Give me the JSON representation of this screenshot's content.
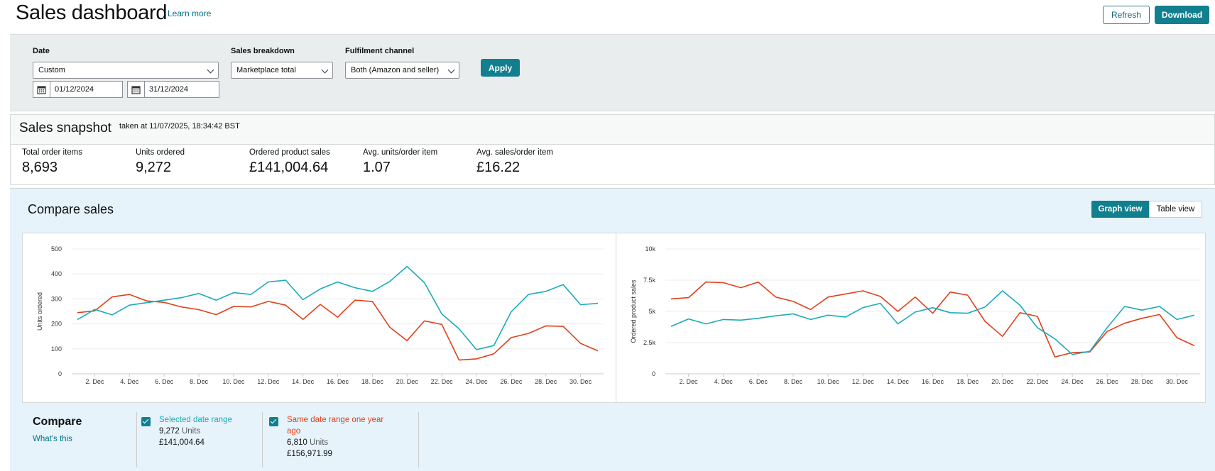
{
  "header": {
    "title": "Sales dashboard",
    "learn_more": "Learn more",
    "refresh_label": "Refresh",
    "download_label": "Download"
  },
  "filters": {
    "date_label": "Date",
    "date_value": "Custom",
    "start_date": "01/12/2024",
    "end_date": "31/12/2024",
    "breakdown_label": "Sales breakdown",
    "breakdown_value": "Marketplace total",
    "channel_label": "Fulfilment channel",
    "channel_value": "Both (Amazon and seller)",
    "apply_label": "Apply"
  },
  "snapshot": {
    "title": "Sales snapshot",
    "taken_at": "taken at 11/07/2025, 18:34:42 BST",
    "metrics": [
      {
        "label": "Total order items",
        "value": "8,693"
      },
      {
        "label": "Units ordered",
        "value": "9,272"
      },
      {
        "label": "Ordered product sales",
        "value": "£141,004.64"
      },
      {
        "label": "Avg. units/order item",
        "value": "1.07"
      },
      {
        "label": "Avg. sales/order item",
        "value": "£16.22"
      }
    ]
  },
  "compare": {
    "title": "Compare sales",
    "graph_view": "Graph view",
    "table_view": "Table view",
    "legend_title": "Compare",
    "whats_this": "What's this",
    "items": [
      {
        "title": "Selected date range",
        "units": "9,272",
        "units_label": "Units",
        "sales": "£141,004.64",
        "color": "#1aabb8"
      },
      {
        "title": "Same date range one year ago",
        "units": "6,810",
        "units_label": "Units",
        "sales": "£156,971.99",
        "color": "#e0401a"
      }
    ]
  },
  "colors": {
    "selected": "#1aabb8",
    "previous": "#e0401a",
    "accent": "#127f8f"
  },
  "chart_data": [
    {
      "type": "line",
      "title": "",
      "xlabel": "",
      "ylabel": "Units ordered",
      "ylim": [
        0,
        500
      ],
      "yticks": [
        "0",
        "100",
        "200",
        "300",
        "400",
        "500"
      ],
      "x": [
        1,
        2,
        3,
        4,
        5,
        6,
        7,
        8,
        9,
        10,
        11,
        12,
        13,
        14,
        15,
        16,
        17,
        18,
        19,
        20,
        21,
        22,
        23,
        24,
        25,
        26,
        27,
        28,
        29,
        30,
        31
      ],
      "xtick_labels": [
        "2. Dec",
        "4. Dec",
        "6. Dec",
        "8. Dec",
        "10. Dec",
        "12. Dec",
        "14. Dec",
        "16. Dec",
        "18. Dec",
        "20. Dec",
        "22. Dec",
        "24. Dec",
        "26. Dec",
        "28. Dec",
        "30. Dec"
      ],
      "series": [
        {
          "name": "Selected date range",
          "values": [
            217,
            258,
            236,
            275,
            285,
            295,
            305,
            322,
            295,
            325,
            318,
            368,
            375,
            297,
            340,
            368,
            345,
            330,
            370,
            430,
            365,
            240,
            180,
            97,
            113,
            248,
            318,
            330,
            357,
            277,
            282
          ]
        },
        {
          "name": "Same date range one year ago",
          "values": [
            245,
            252,
            308,
            318,
            292,
            286,
            268,
            257,
            237,
            270,
            268,
            290,
            275,
            218,
            278,
            227,
            295,
            290,
            187,
            133,
            212,
            198,
            55,
            60,
            80,
            145,
            162,
            192,
            190,
            122,
            92
          ]
        }
      ]
    },
    {
      "type": "line",
      "title": "",
      "xlabel": "",
      "ylabel": "Ordered product sales",
      "ylim": [
        0,
        10000
      ],
      "yticks": [
        "0",
        "2.5k",
        "5k",
        "7.5k",
        "10k"
      ],
      "x": [
        1,
        2,
        3,
        4,
        5,
        6,
        7,
        8,
        9,
        10,
        11,
        12,
        13,
        14,
        15,
        16,
        17,
        18,
        19,
        20,
        21,
        22,
        23,
        24,
        25,
        26,
        27,
        28,
        29,
        30,
        31
      ],
      "xtick_labels": [
        "2. Dec",
        "4. Dec",
        "6. Dec",
        "8. Dec",
        "10. Dec",
        "12. Dec",
        "14. Dec",
        "16. Dec",
        "18. Dec",
        "20. Dec",
        "22. Dec",
        "24. Dec",
        "26. Dec",
        "28. Dec",
        "30. Dec"
      ],
      "series": [
        {
          "name": "Selected date range",
          "values": [
            3800,
            4400,
            4000,
            4350,
            4300,
            4450,
            4650,
            4800,
            4350,
            4700,
            4550,
            5300,
            5650,
            4000,
            4950,
            5300,
            4900,
            4850,
            5350,
            6650,
            5500,
            3700,
            2800,
            1550,
            1800,
            3700,
            5400,
            5100,
            5400,
            4350,
            4700
          ]
        },
        {
          "name": "Same date range one year ago",
          "values": [
            6000,
            6100,
            7350,
            7300,
            6900,
            7350,
            6150,
            5800,
            5150,
            6150,
            6400,
            6650,
            6200,
            5000,
            6150,
            4850,
            6550,
            6300,
            4200,
            3000,
            4900,
            4600,
            1350,
            1700,
            1750,
            3400,
            4050,
            4450,
            4750,
            2900,
            2250
          ]
        }
      ]
    }
  ]
}
